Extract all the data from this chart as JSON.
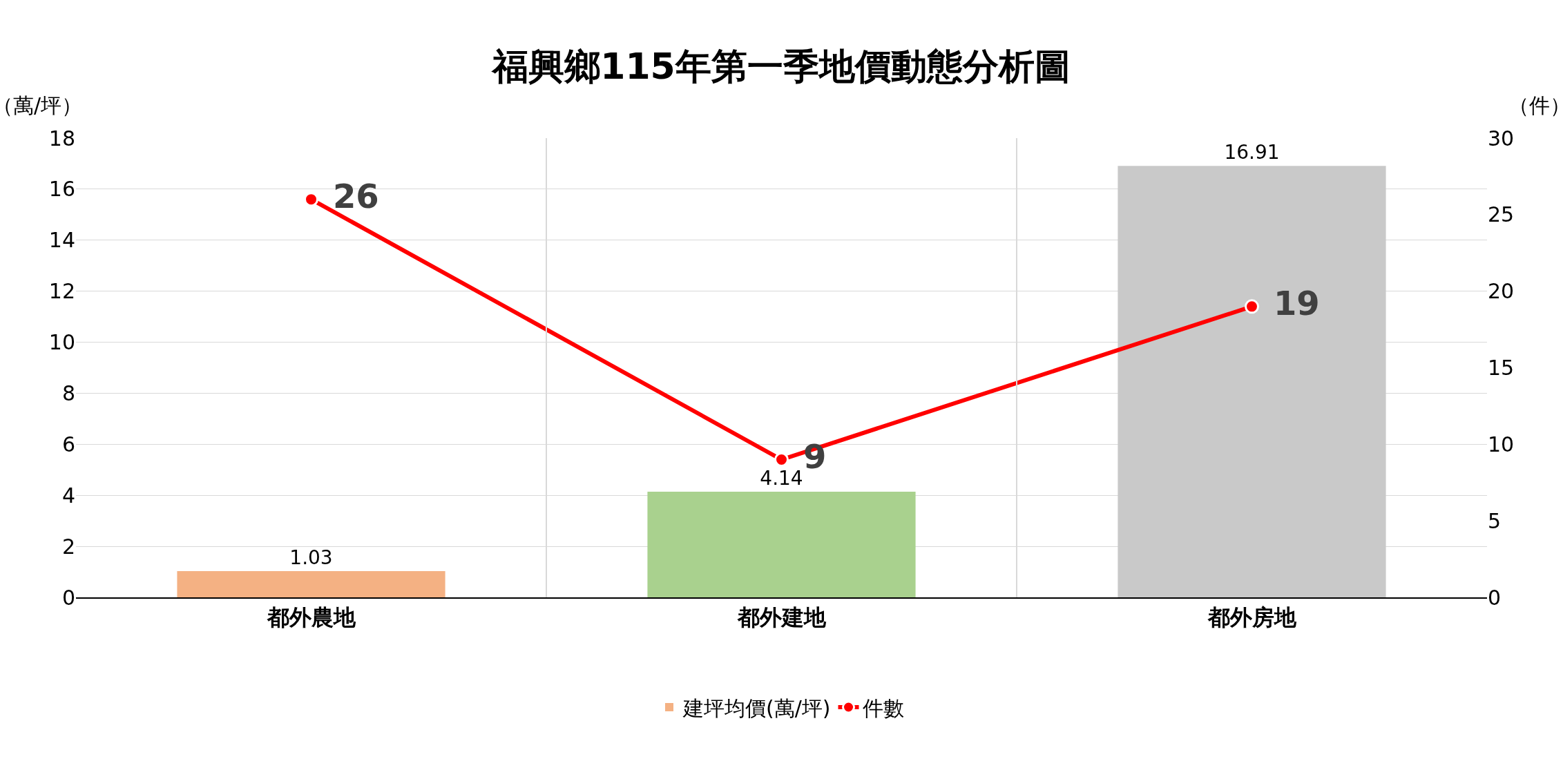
{
  "chart_data": {
    "type": "bar",
    "title": "福興鄉115年第一季地價動態分析圖",
    "ylabel": "（萬/坪）",
    "y2label": "（件）",
    "categories": [
      "都外農地",
      "都外建地",
      "都外房地"
    ],
    "series": [
      {
        "name": "建坪均價(萬/坪)",
        "colors": [
          "#f4b183",
          "#a9d18e",
          "#c9c9c9"
        ],
        "values": [
          1.03,
          4.14,
          16.91
        ]
      },
      {
        "type": "line",
        "name": "件數",
        "color": "#ff0000",
        "axis": "y2",
        "marker": "circle",
        "values": [
          26,
          9,
          19
        ]
      }
    ],
    "ylim": [
      0,
      18
    ],
    "yticks": [
      0,
      2,
      4,
      6,
      8,
      10,
      12,
      14,
      16,
      18
    ],
    "y2lim": [
      0,
      30
    ],
    "y2ticks": [
      0,
      5,
      10,
      15,
      20,
      25,
      30
    ],
    "data_labels": true,
    "grid": true,
    "legend": "bottom"
  }
}
